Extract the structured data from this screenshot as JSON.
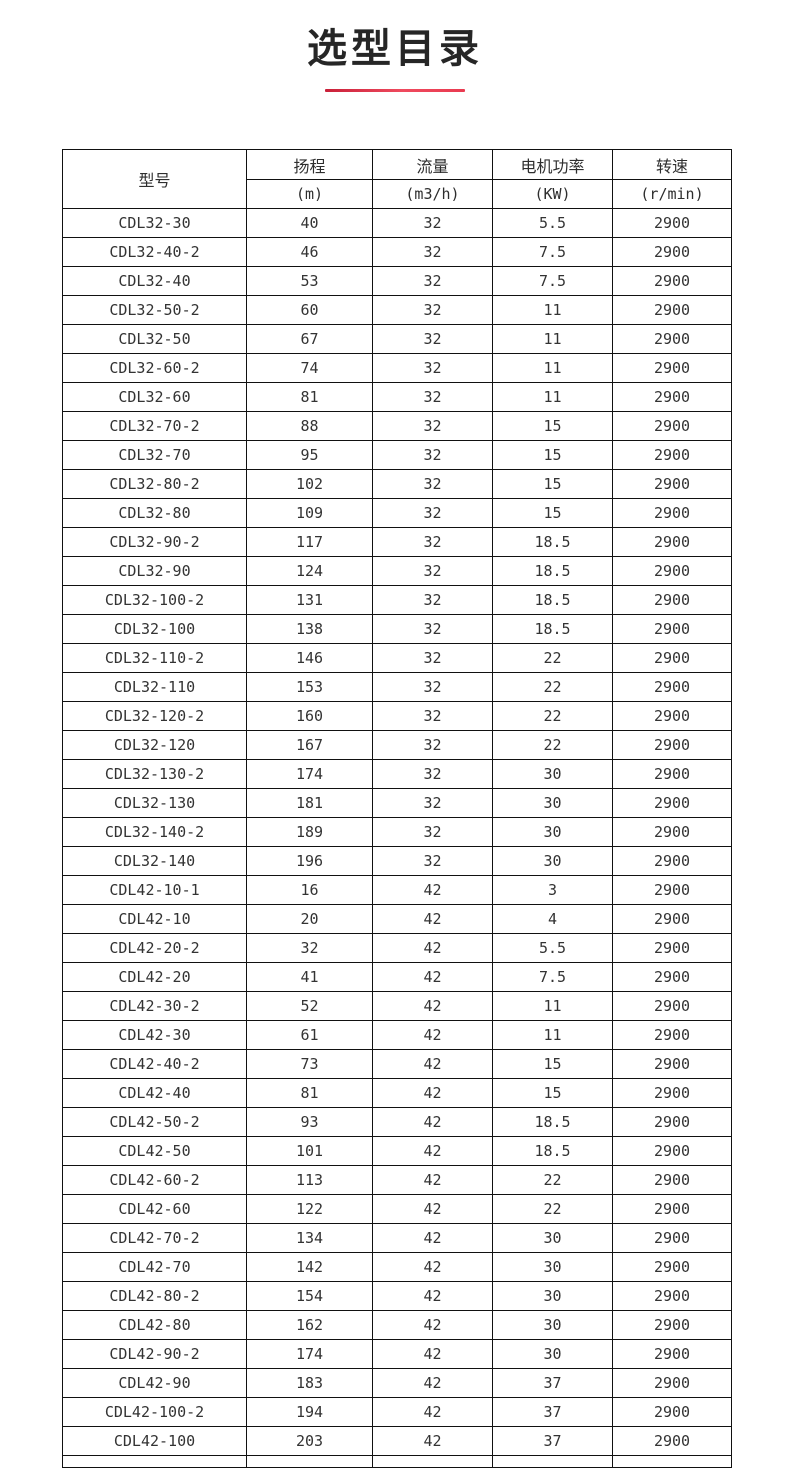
{
  "accent_color": "#e73a50",
  "header": {
    "title": "选型目录"
  },
  "table": {
    "columns": [
      {
        "label": "型号",
        "unit": ""
      },
      {
        "label": "扬程",
        "unit": "(m)"
      },
      {
        "label": "流量",
        "unit": "(m3/h)"
      },
      {
        "label": "电机功率",
        "unit": "(KW)"
      },
      {
        "label": "转速",
        "unit": "(r/min)"
      }
    ],
    "rows": [
      [
        "CDL32-30",
        "40",
        "32",
        "5.5",
        "2900"
      ],
      [
        "CDL32-40-2",
        "46",
        "32",
        "7.5",
        "2900"
      ],
      [
        "CDL32-40",
        "53",
        "32",
        "7.5",
        "2900"
      ],
      [
        "CDL32-50-2",
        "60",
        "32",
        "11",
        "2900"
      ],
      [
        "CDL32-50",
        "67",
        "32",
        "11",
        "2900"
      ],
      [
        "CDL32-60-2",
        "74",
        "32",
        "11",
        "2900"
      ],
      [
        "CDL32-60",
        "81",
        "32",
        "11",
        "2900"
      ],
      [
        "CDL32-70-2",
        "88",
        "32",
        "15",
        "2900"
      ],
      [
        "CDL32-70",
        "95",
        "32",
        "15",
        "2900"
      ],
      [
        "CDL32-80-2",
        "102",
        "32",
        "15",
        "2900"
      ],
      [
        "CDL32-80",
        "109",
        "32",
        "15",
        "2900"
      ],
      [
        "CDL32-90-2",
        "117",
        "32",
        "18.5",
        "2900"
      ],
      [
        "CDL32-90",
        "124",
        "32",
        "18.5",
        "2900"
      ],
      [
        "CDL32-100-2",
        "131",
        "32",
        "18.5",
        "2900"
      ],
      [
        "CDL32-100",
        "138",
        "32",
        "18.5",
        "2900"
      ],
      [
        "CDL32-110-2",
        "146",
        "32",
        "22",
        "2900"
      ],
      [
        "CDL32-110",
        "153",
        "32",
        "22",
        "2900"
      ],
      [
        "CDL32-120-2",
        "160",
        "32",
        "22",
        "2900"
      ],
      [
        "CDL32-120",
        "167",
        "32",
        "22",
        "2900"
      ],
      [
        "CDL32-130-2",
        "174",
        "32",
        "30",
        "2900"
      ],
      [
        "CDL32-130",
        "181",
        "32",
        "30",
        "2900"
      ],
      [
        "CDL32-140-2",
        "189",
        "32",
        "30",
        "2900"
      ],
      [
        "CDL32-140",
        "196",
        "32",
        "30",
        "2900"
      ],
      [
        "CDL42-10-1",
        "16",
        "42",
        "3",
        "2900"
      ],
      [
        "CDL42-10",
        "20",
        "42",
        "4",
        "2900"
      ],
      [
        "CDL42-20-2",
        "32",
        "42",
        "5.5",
        "2900"
      ],
      [
        "CDL42-20",
        "41",
        "42",
        "7.5",
        "2900"
      ],
      [
        "CDL42-30-2",
        "52",
        "42",
        "11",
        "2900"
      ],
      [
        "CDL42-30",
        "61",
        "42",
        "11",
        "2900"
      ],
      [
        "CDL42-40-2",
        "73",
        "42",
        "15",
        "2900"
      ],
      [
        "CDL42-40",
        "81",
        "42",
        "15",
        "2900"
      ],
      [
        "CDL42-50-2",
        "93",
        "42",
        "18.5",
        "2900"
      ],
      [
        "CDL42-50",
        "101",
        "42",
        "18.5",
        "2900"
      ],
      [
        "CDL42-60-2",
        "113",
        "42",
        "22",
        "2900"
      ],
      [
        "CDL42-60",
        "122",
        "42",
        "22",
        "2900"
      ],
      [
        "CDL42-70-2",
        "134",
        "42",
        "30",
        "2900"
      ],
      [
        "CDL42-70",
        "142",
        "42",
        "30",
        "2900"
      ],
      [
        "CDL42-80-2",
        "154",
        "42",
        "30",
        "2900"
      ],
      [
        "CDL42-80",
        "162",
        "42",
        "30",
        "2900"
      ],
      [
        "CDL42-90-2",
        "174",
        "42",
        "30",
        "2900"
      ],
      [
        "CDL42-90",
        "183",
        "42",
        "37",
        "2900"
      ],
      [
        "CDL42-100-2",
        "194",
        "42",
        "37",
        "2900"
      ],
      [
        "CDL42-100",
        "203",
        "42",
        "37",
        "2900"
      ]
    ]
  }
}
